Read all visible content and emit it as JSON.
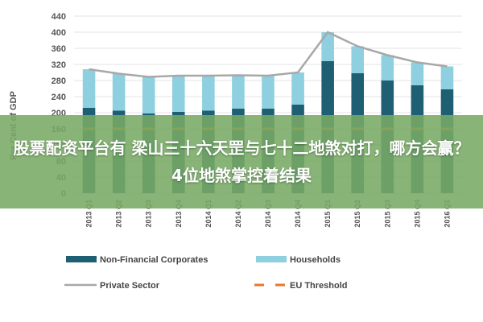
{
  "chart_data": {
    "type": "bar",
    "stacked": true,
    "ylabel": "Per Cent of GDP",
    "ylim": [
      0,
      440
    ],
    "yticks": [
      0,
      40,
      80,
      120,
      160,
      200,
      240,
      280,
      320,
      360,
      400,
      440
    ],
    "grid": true,
    "legend_position": "bottom",
    "categories": [
      "2013 Q1",
      "2013 Q2",
      "2013 Q3",
      "2013 Q4",
      "2014 Q1",
      "2014 Q2",
      "2014 Q3",
      "2014 Q4",
      "2015 Q1",
      "2015 Q2",
      "2015 Q3",
      "2015 Q4",
      "2016 Q1"
    ],
    "series": [
      {
        "name": "Non-Financial Corporates",
        "kind": "bar",
        "color": "#1f5f73",
        "values": [
          212,
          205,
          198,
          202,
          205,
          210,
          210,
          220,
          328,
          298,
          280,
          268,
          258
        ]
      },
      {
        "name": "Households",
        "kind": "bar",
        "color": "#8ecfe0",
        "values": [
          96,
          92,
          91,
          90,
          87,
          83,
          82,
          80,
          72,
          67,
          63,
          57,
          57
        ]
      },
      {
        "name": "Private Sector",
        "kind": "line",
        "color": "#a8a8a8",
        "values": [
          308,
          297,
          289,
          292,
          292,
          293,
          292,
          300,
          400,
          365,
          343,
          325,
          315
        ]
      },
      {
        "name": "EU Threshold",
        "kind": "dashed",
        "color": "#e8762c",
        "values": [
          160,
          160,
          160,
          160,
          160,
          160,
          160,
          160,
          160,
          160,
          160,
          160,
          160
        ]
      }
    ]
  },
  "banner": {
    "text": "股票配资平台有 梁山三十六天罡与七十二地煞对打，哪方会赢？4位地煞掌控着结果"
  }
}
